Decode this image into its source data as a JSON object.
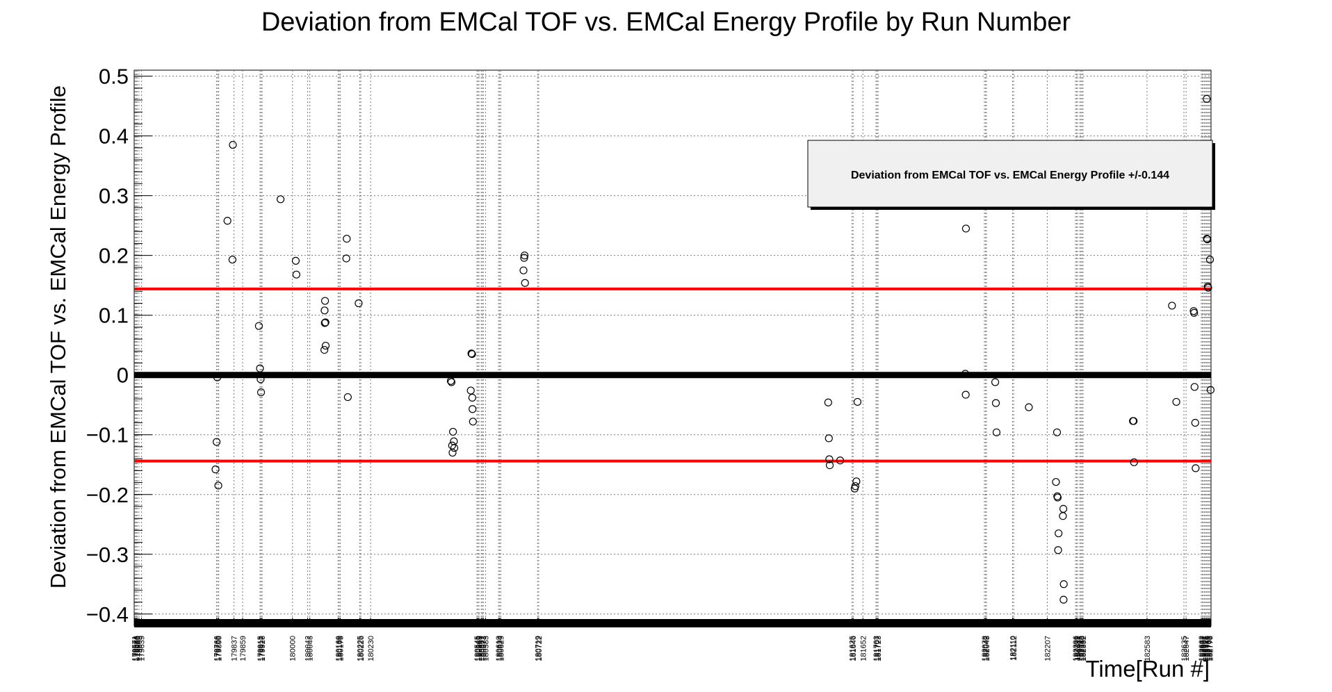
{
  "chart_data": {
    "type": "scatter",
    "title": "Deviation from EMCal TOF vs. EMCal Energy Profile by Run Number",
    "xlabel": "Time[Run #]",
    "ylabel": "Deviation from EMCal TOF vs. EMCal Energy Profile",
    "ylim": [
      -0.42,
      0.51
    ],
    "yticks": [
      -0.4,
      -0.3,
      -0.2,
      -0.1,
      0,
      0.1,
      0.2,
      0.3,
      0.4,
      0.5
    ],
    "ytick_labels": [
      "−0.4",
      "−0.3",
      "−0.2",
      "−0.1",
      "0",
      "0.1",
      "0.2",
      "0.3",
      "0.4",
      "0.5"
    ],
    "grid": true,
    "threshold_lines": [
      0.144,
      -0.144
    ],
    "threshold_color": "#ff0000",
    "baseline_value": 0,
    "legend": {
      "text": "Deviation from EMCal TOF vs. EMCal Energy Profile +/-0.144",
      "position": "top-right"
    },
    "x_tick_labels": [
      "179571",
      "179584",
      "179586",
      "179588",
      "179603",
      "179639",
      "179766",
      "179768",
      "179800",
      "179837",
      "179859",
      "179915",
      "179917",
      "179926",
      "180000",
      "180042",
      "180043",
      "180160",
      "180168",
      "180175",
      "180225",
      "180226",
      "180230",
      "180545",
      "180546",
      "180563",
      "180567",
      "180572",
      "180573",
      "180583",
      "180619",
      "180624",
      "180629",
      "180719",
      "180722",
      "181625",
      "181646",
      "181652",
      "181703",
      "181707",
      "181723",
      "182038",
      "182042",
      "182045",
      "182110",
      "182112",
      "182207",
      "182296",
      "182299",
      "182311",
      "182325",
      "182333",
      "182350",
      "182352",
      "182583",
      "182635",
      "182647",
      "182662",
      "182672",
      "182691",
      "182707",
      "182721",
      "182740",
      "182751",
      "182763",
      "182770"
    ],
    "x_tick_positions": [
      0.2,
      0.6,
      1.0,
      1.4,
      2.2,
      3.4,
      38,
      38.5,
      39,
      46,
      50,
      58,
      58.5,
      59,
      73,
      80,
      81,
      94,
      94.5,
      95,
      104,
      104.5,
      109,
      158,
      158.5,
      159,
      160,
      160.5,
      161,
      162,
      168,
      168.5,
      169,
      186,
      186.5,
      331,
      331.5,
      336,
      342,
      342.5,
      343,
      392,
      392.5,
      393,
      405,
      405.5,
      421,
      434,
      434.5,
      435,
      436,
      436.5,
      437,
      437.5,
      467,
      484,
      485,
      492,
      492.5,
      493,
      493.5,
      494,
      494.5,
      495,
      495.5,
      496
    ],
    "x_range": [
      0,
      496.5
    ],
    "points": [
      {
        "run": "179766",
        "x": 37.5,
        "y": -0.158
      },
      {
        "run": "179768",
        "x": 38,
        "y": -0.112
      },
      {
        "run": "179768",
        "x": 38.3,
        "y": -0.004
      },
      {
        "run": "179800",
        "x": 38.8,
        "y": -0.185
      },
      {
        "run": "179837",
        "x": 43,
        "y": 0.258
      },
      {
        "run": "179859",
        "x": 45.5,
        "y": 0.385
      },
      {
        "run": "179859",
        "x": 45.3,
        "y": 0.193
      },
      {
        "run": "179915",
        "x": 57.5,
        "y": 0.082
      },
      {
        "run": "179917",
        "x": 58,
        "y": 0.011
      },
      {
        "run": "179926",
        "x": 58.3,
        "y": -0.007
      },
      {
        "run": "179926",
        "x": 58.5,
        "y": -0.029
      },
      {
        "run": "180000",
        "x": 67.5,
        "y": 0.294
      },
      {
        "run": "180042",
        "x": 74.5,
        "y": 0.191
      },
      {
        "run": "180043",
        "x": 74.8,
        "y": 0.168
      },
      {
        "run": "180160",
        "x": 88,
        "y": 0.124
      },
      {
        "run": "180160",
        "x": 87.8,
        "y": 0.108
      },
      {
        "run": "180168",
        "x": 88.2,
        "y": 0.088
      },
      {
        "run": "180168",
        "x": 87.9,
        "y": 0.087
      },
      {
        "run": "180175",
        "x": 88.3,
        "y": 0.049
      },
      {
        "run": "180175",
        "x": 87.7,
        "y": 0.042
      },
      {
        "run": "180225",
        "x": 98,
        "y": 0.228
      },
      {
        "run": "180225",
        "x": 97.8,
        "y": 0.195
      },
      {
        "run": "180226",
        "x": 98.5,
        "y": -0.037
      },
      {
        "run": "180230",
        "x": 103.5,
        "y": 0.12
      },
      {
        "run": "180545",
        "x": 146,
        "y": -0.01
      },
      {
        "run": "180545",
        "x": 146.3,
        "y": -0.012
      },
      {
        "run": "180546",
        "x": 147,
        "y": -0.095
      },
      {
        "run": "180563",
        "x": 147.4,
        "y": -0.111
      },
      {
        "run": "180567",
        "x": 146.6,
        "y": -0.118
      },
      {
        "run": "180572",
        "x": 147.6,
        "y": -0.122
      },
      {
        "run": "180573",
        "x": 146.8,
        "y": -0.13
      },
      {
        "run": "180583",
        "x": 155.5,
        "y": 0.036
      },
      {
        "run": "180583",
        "x": 155.8,
        "y": 0.035
      },
      {
        "run": "180619",
        "x": 155.2,
        "y": -0.026
      },
      {
        "run": "180624",
        "x": 155.9,
        "y": -0.038
      },
      {
        "run": "180629",
        "x": 156,
        "y": -0.057
      },
      {
        "run": "180629",
        "x": 156.2,
        "y": -0.078
      },
      {
        "run": "180719",
        "x": 180,
        "y": 0.2
      },
      {
        "run": "180719",
        "x": 179.8,
        "y": 0.196
      },
      {
        "run": "180722",
        "x": 179.5,
        "y": 0.175
      },
      {
        "run": "180722",
        "x": 180.2,
        "y": 0.154
      },
      {
        "run": "181625",
        "x": 320,
        "y": -0.046
      },
      {
        "run": "181625",
        "x": 320.3,
        "y": -0.106
      },
      {
        "run": "181646",
        "x": 320.5,
        "y": -0.141
      },
      {
        "run": "181646",
        "x": 320.7,
        "y": -0.151
      },
      {
        "run": "181652",
        "x": 325.5,
        "y": -0.143
      },
      {
        "run": "181703",
        "x": 333.5,
        "y": -0.045
      },
      {
        "run": "181707",
        "x": 333,
        "y": -0.178
      },
      {
        "run": "181723",
        "x": 332.5,
        "y": -0.186
      },
      {
        "run": "181723",
        "x": 332.2,
        "y": -0.19
      },
      {
        "run": "182038",
        "x": 383.5,
        "y": 0.245
      },
      {
        "run": "182042",
        "x": 383.2,
        "y": 0.002
      },
      {
        "run": "182045",
        "x": 383.4,
        "y": -0.033
      },
      {
        "run": "182110",
        "x": 397,
        "y": -0.012
      },
      {
        "run": "182110",
        "x": 397.3,
        "y": -0.047
      },
      {
        "run": "182112",
        "x": 397.6,
        "y": -0.096
      },
      {
        "run": "182207",
        "x": 412.5,
        "y": -0.054
      },
      {
        "run": "182296",
        "x": 425.5,
        "y": -0.096
      },
      {
        "run": "182296",
        "x": 425,
        "y": -0.179
      },
      {
        "run": "182299",
        "x": 425.6,
        "y": -0.203
      },
      {
        "run": "182299",
        "x": 425.8,
        "y": -0.205
      },
      {
        "run": "182311",
        "x": 426.2,
        "y": -0.265
      },
      {
        "run": "182325",
        "x": 426,
        "y": -0.293
      },
      {
        "run": "182333",
        "x": 428.4,
        "y": -0.224
      },
      {
        "run": "182333",
        "x": 428.2,
        "y": -0.236
      },
      {
        "run": "182350",
        "x": 428.6,
        "y": -0.35
      },
      {
        "run": "182352",
        "x": 428.5,
        "y": -0.376
      },
      {
        "run": "182583",
        "x": 460.5,
        "y": -0.077
      },
      {
        "run": "182583",
        "x": 460.8,
        "y": -0.077
      },
      {
        "run": "182583",
        "x": 461,
        "y": -0.146
      },
      {
        "run": "182635",
        "x": 478.5,
        "y": 0.116
      },
      {
        "run": "182647",
        "x": 480.5,
        "y": -0.045
      },
      {
        "run": "182662",
        "x": 488.5,
        "y": 0.107
      },
      {
        "run": "182662",
        "x": 488.7,
        "y": 0.104
      },
      {
        "run": "182672",
        "x": 488.9,
        "y": -0.02
      },
      {
        "run": "182691",
        "x": 489.2,
        "y": -0.08
      },
      {
        "run": "182691",
        "x": 489.4,
        "y": -0.156
      },
      {
        "run": "182721",
        "x": 494.5,
        "y": 0.462
      },
      {
        "run": "182740",
        "x": 494.6,
        "y": 0.228
      },
      {
        "run": "182740",
        "x": 494.8,
        "y": 0.227
      },
      {
        "run": "182751",
        "x": 495,
        "y": 0.148
      },
      {
        "run": "182751",
        "x": 495.2,
        "y": 0.146
      },
      {
        "run": "182763",
        "x": 496,
        "y": 0.193
      },
      {
        "run": "182770",
        "x": 496.3,
        "y": -0.025
      }
    ]
  }
}
